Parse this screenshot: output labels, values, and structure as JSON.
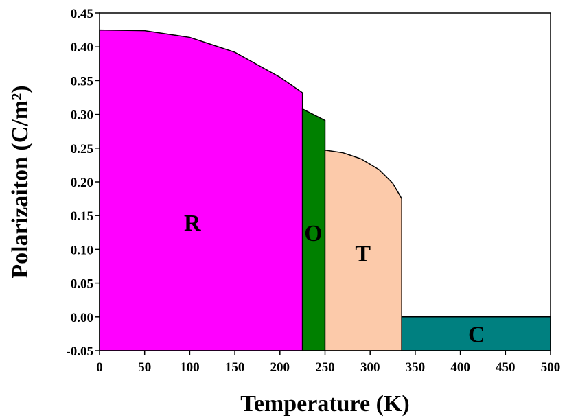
{
  "chart_data": {
    "type": "area",
    "xlabel": "Temperature (K)",
    "ylabel": "Polarizaiton (C/m²)",
    "xlim": [
      0,
      500
    ],
    "ylim": [
      -0.05,
      0.45
    ],
    "xticks": [
      "0",
      "50",
      "100",
      "150",
      "200",
      "250",
      "300",
      "350",
      "400",
      "450",
      "500"
    ],
    "yticks": [
      "-0.05",
      "0.00",
      "0.05",
      "0.10",
      "0.15",
      "0.20",
      "0.25",
      "0.30",
      "0.35",
      "0.40",
      "0.45"
    ],
    "grid": false,
    "regions": [
      {
        "label": "R",
        "color": "#ff00ff",
        "x_start": 0,
        "x_end": 225,
        "curve": [
          [
            0,
            0.425
          ],
          [
            50,
            0.424
          ],
          [
            100,
            0.414
          ],
          [
            150,
            0.392
          ],
          [
            200,
            0.355
          ],
          [
            225,
            0.332
          ]
        ],
        "label_at": [
          103,
          0.14
        ]
      },
      {
        "label": "O",
        "color": "#008000",
        "x_start": 225,
        "x_end": 250,
        "curve": [
          [
            225,
            0.308
          ],
          [
            250,
            0.291
          ]
        ],
        "label_at": [
          237,
          0.125
        ]
      },
      {
        "label": "T",
        "color": "#fccaaa",
        "x_start": 250,
        "x_end": 335,
        "curve": [
          [
            250,
            0.247
          ],
          [
            270,
            0.243
          ],
          [
            290,
            0.234
          ],
          [
            310,
            0.218
          ],
          [
            325,
            0.198
          ],
          [
            333,
            0.18
          ],
          [
            335,
            0.175
          ]
        ],
        "label_at": [
          292,
          0.095
        ]
      },
      {
        "label": "C",
        "color": "#008080",
        "x_start": 335,
        "x_end": 500,
        "curve": [
          [
            335,
            0.0
          ],
          [
            500,
            0.0
          ]
        ],
        "label_at": [
          418,
          -0.025
        ]
      }
    ]
  }
}
